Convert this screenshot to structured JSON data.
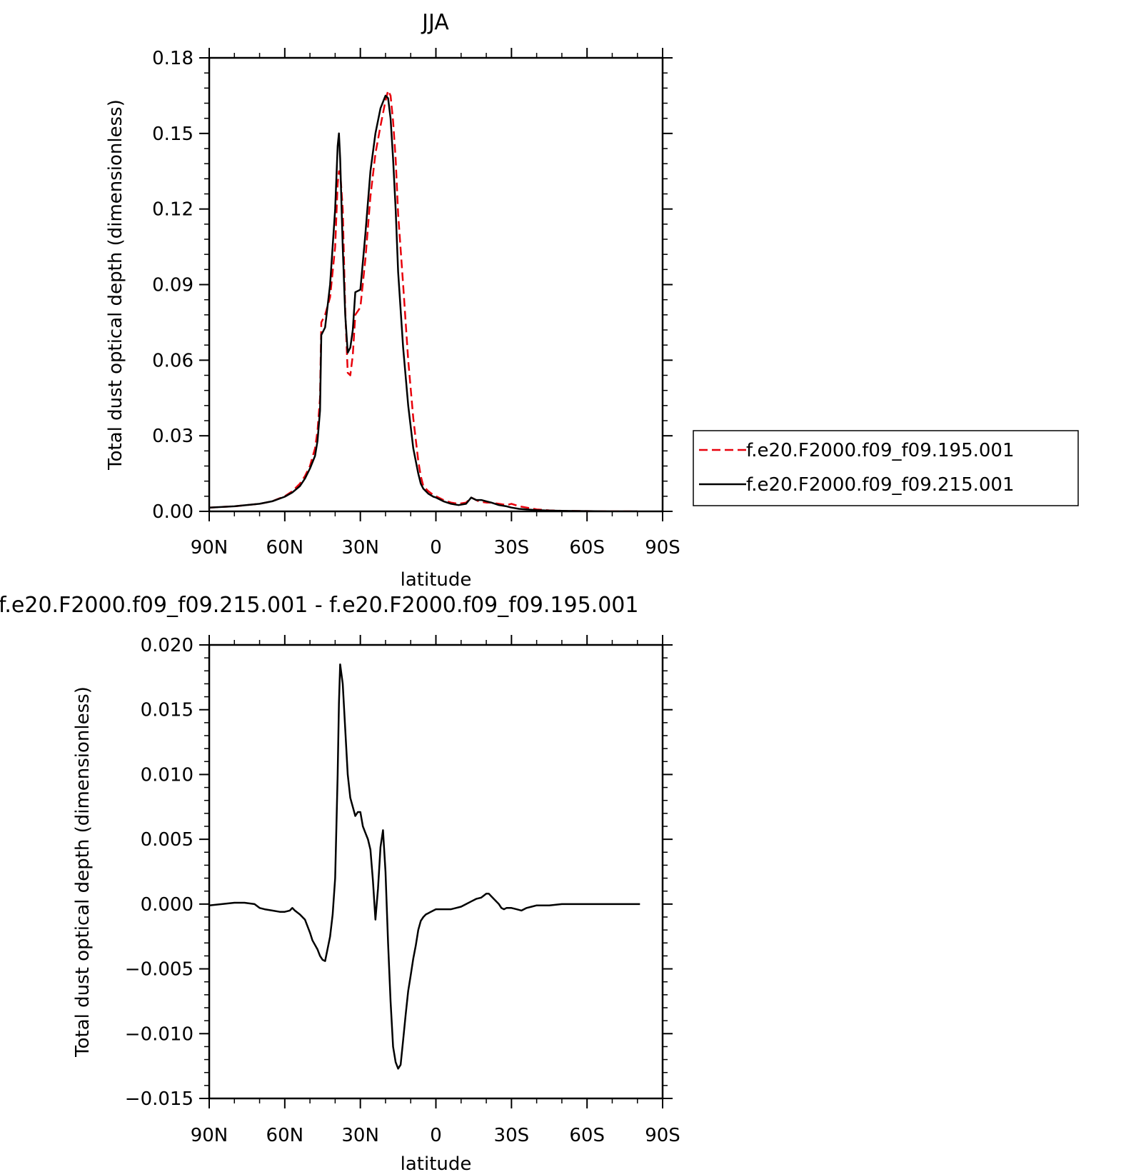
{
  "chart_data": [
    {
      "type": "line",
      "title": "JJA",
      "xlabel": "latitude",
      "ylabel": "Total dust optical depth (dimensionless)",
      "xticks": [
        {
          "value": 90,
          "label": "90N"
        },
        {
          "value": 60,
          "label": "60N"
        },
        {
          "value": 30,
          "label": "30N"
        },
        {
          "value": 0,
          "label": "0"
        },
        {
          "value": -30,
          "label": "30S"
        },
        {
          "value": -60,
          "label": "60S"
        },
        {
          "value": -90,
          "label": "90S"
        }
      ],
      "xlim": [
        90,
        -90
      ],
      "ylim": [
        0,
        0.18
      ],
      "yticks": [
        {
          "value": 0.0,
          "label": "0.00"
        },
        {
          "value": 0.03,
          "label": "0.03"
        },
        {
          "value": 0.06,
          "label": "0.06"
        },
        {
          "value": 0.09,
          "label": "0.09"
        },
        {
          "value": 0.12,
          "label": "0.12"
        },
        {
          "value": 0.15,
          "label": "0.15"
        },
        {
          "value": 0.18,
          "label": "0.18"
        }
      ],
      "legend_position": "right",
      "series": [
        {
          "name": "f.e20.F2000.f09_f09.195.001",
          "color": "#e8000b",
          "dash": "dashed",
          "x": [
            90,
            80,
            70,
            65,
            60,
            57,
            54,
            52,
            50,
            48,
            47,
            46,
            45.5,
            44,
            42,
            40,
            39,
            38.5,
            38,
            37,
            36,
            35,
            34,
            33,
            32,
            30,
            28,
            26,
            24,
            22,
            20,
            19,
            18,
            17,
            16,
            15,
            13,
            11,
            9,
            7,
            6,
            5,
            3,
            1,
            0,
            -3,
            -6,
            -9,
            -12,
            -14,
            -16,
            -17,
            -18,
            -20,
            -22,
            -25,
            -28,
            -30,
            -33,
            -36,
            -40,
            -45,
            -50,
            -60,
            -70,
            -80
          ],
          "y": [
            0.0015,
            0.002,
            0.003,
            0.004,
            0.006,
            0.008,
            0.011,
            0.014,
            0.018,
            0.025,
            0.032,
            0.045,
            0.075,
            0.078,
            0.085,
            0.105,
            0.13,
            0.135,
            0.135,
            0.12,
            0.08,
            0.055,
            0.054,
            0.062,
            0.078,
            0.081,
            0.1,
            0.125,
            0.142,
            0.153,
            0.163,
            0.167,
            0.165,
            0.155,
            0.14,
            0.118,
            0.09,
            0.06,
            0.037,
            0.02,
            0.014,
            0.01,
            0.008,
            0.0065,
            0.006,
            0.0045,
            0.0035,
            0.003,
            0.0035,
            0.0055,
            0.0045,
            0.004,
            0.0038,
            0.0035,
            0.0035,
            0.003,
            0.0025,
            0.003,
            0.002,
            0.0015,
            0.0008,
            0.0004,
            0.0002,
            0.0001,
            0.0,
            0.0
          ]
        },
        {
          "name": "f.e20.F2000.f09_f09.215.001",
          "color": "#000000",
          "dash": "solid",
          "x": [
            90,
            80,
            70,
            65,
            60,
            57,
            54,
            52,
            50,
            48,
            47,
            46,
            45.5,
            44,
            42,
            40,
            39,
            38.5,
            38,
            37,
            36,
            35,
            34,
            33,
            32,
            30,
            28,
            26,
            24,
            22,
            20,
            19,
            18,
            17,
            16,
            15,
            13,
            11,
            9,
            7,
            6,
            5,
            3,
            1,
            0,
            -3,
            -6,
            -9,
            -12,
            -14,
            -16,
            -17,
            -18,
            -20,
            -22,
            -25,
            -28,
            -30,
            -33,
            -36,
            -40,
            -45,
            -50,
            -60,
            -70,
            -80
          ],
          "y": [
            0.0015,
            0.002,
            0.003,
            0.004,
            0.0058,
            0.0075,
            0.01,
            0.013,
            0.017,
            0.022,
            0.028,
            0.04,
            0.07,
            0.073,
            0.09,
            0.12,
            0.145,
            0.15,
            0.14,
            0.105,
            0.078,
            0.063,
            0.065,
            0.072,
            0.087,
            0.088,
            0.11,
            0.135,
            0.15,
            0.16,
            0.165,
            0.164,
            0.156,
            0.14,
            0.12,
            0.095,
            0.065,
            0.042,
            0.025,
            0.015,
            0.011,
            0.009,
            0.007,
            0.0058,
            0.0055,
            0.004,
            0.003,
            0.0025,
            0.003,
            0.0055,
            0.0045,
            0.0045,
            0.0045,
            0.004,
            0.0035,
            0.0025,
            0.002,
            0.0015,
            0.001,
            0.0008,
            0.0005,
            0.0003,
            0.0002,
            0.0001,
            0.0,
            0.0
          ]
        }
      ]
    },
    {
      "type": "line",
      "title": "f.e20.F2000.f09_f09.215.001 - f.e20.F2000.f09_f09.195.001",
      "xlabel": "latitude",
      "ylabel": "Total dust optical depth (dimensionless)",
      "xticks": [
        {
          "value": 90,
          "label": "90N"
        },
        {
          "value": 60,
          "label": "60N"
        },
        {
          "value": 30,
          "label": "30N"
        },
        {
          "value": 0,
          "label": "0"
        },
        {
          "value": -30,
          "label": "30S"
        },
        {
          "value": -60,
          "label": "60S"
        },
        {
          "value": -90,
          "label": "90S"
        }
      ],
      "xlim": [
        90,
        -90
      ],
      "ylim": [
        -0.015,
        0.02
      ],
      "yticks": [
        {
          "value": -0.015,
          "label": "−0.015"
        },
        {
          "value": -0.01,
          "label": "−0.010"
        },
        {
          "value": -0.005,
          "label": "−0.005"
        },
        {
          "value": 0.0,
          "label": "0.000"
        },
        {
          "value": 0.005,
          "label": "0.005"
        },
        {
          "value": 0.01,
          "label": "0.010"
        },
        {
          "value": 0.015,
          "label": "0.015"
        },
        {
          "value": 0.02,
          "label": "0.020"
        }
      ],
      "series": [
        {
          "color": "#000000",
          "dash": "solid",
          "x": [
            90,
            85,
            80,
            76,
            72,
            70,
            68,
            65,
            62,
            60,
            58,
            57,
            56,
            54,
            52,
            50,
            49,
            47,
            46,
            45,
            44,
            42,
            41,
            40,
            39,
            38.5,
            38,
            37,
            36,
            35,
            34,
            33,
            32,
            31,
            30,
            29,
            28,
            27,
            26,
            25,
            24,
            23,
            22,
            21,
            20,
            19,
            18,
            17,
            16,
            15,
            14,
            13,
            12,
            11,
            10,
            9,
            8,
            7,
            6,
            5,
            4,
            3,
            2,
            1,
            0,
            -2,
            -4,
            -6,
            -8,
            -10,
            -12,
            -14,
            -16,
            -18,
            -20,
            -21,
            -22,
            -23,
            -25,
            -26,
            -27,
            -28,
            -30,
            -32,
            -34,
            -36,
            -38,
            -40,
            -45,
            -50,
            -60,
            -70,
            -81
          ],
          "y": [
            -0.0001,
            0.0,
            0.0001,
            0.0001,
            0.0,
            -0.0003,
            -0.0004,
            -0.0005,
            -0.0006,
            -0.0006,
            -0.0005,
            -0.0003,
            -0.0005,
            -0.0008,
            -0.0012,
            -0.0022,
            -0.0028,
            -0.0035,
            -0.004,
            -0.0043,
            -0.0044,
            -0.0025,
            -0.0008,
            0.002,
            0.01,
            0.0155,
            0.0185,
            0.017,
            0.0135,
            0.01,
            0.0082,
            0.0075,
            0.0068,
            0.0071,
            0.0071,
            0.006,
            0.0055,
            0.005,
            0.0042,
            0.0018,
            -0.0012,
            0.0012,
            0.0044,
            0.0057,
            0.0025,
            -0.003,
            -0.0075,
            -0.011,
            -0.0122,
            -0.0127,
            -0.0124,
            -0.0105,
            -0.0085,
            -0.0067,
            -0.0055,
            -0.0042,
            -0.0032,
            -0.002,
            -0.0013,
            -0.001,
            -0.0008,
            -0.0007,
            -0.0006,
            -0.0005,
            -0.0004,
            -0.0004,
            -0.0004,
            -0.0004,
            -0.0003,
            -0.0002,
            0.0,
            0.0002,
            0.0004,
            0.0005,
            0.0008,
            0.0008,
            0.0006,
            0.0004,
            0.0,
            -0.0003,
            -0.0004,
            -0.0003,
            -0.0003,
            -0.0004,
            -0.0005,
            -0.0003,
            -0.0002,
            -0.0001,
            -0.0001,
            0.0,
            0.0,
            0.0,
            0.0
          ]
        }
      ]
    }
  ]
}
